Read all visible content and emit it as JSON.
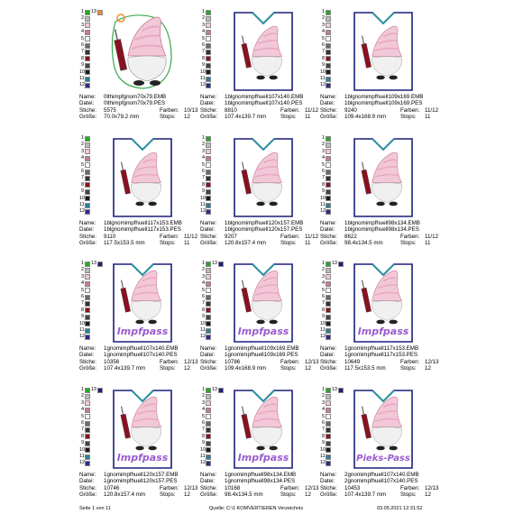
{
  "labels": {
    "name": "Name:",
    "file": "Datei:",
    "stitches": "Stiche:",
    "colors": "Farben:",
    "size": "Größe:",
    "stops": "Stops:"
  },
  "swatch_colors": [
    "#22aa22",
    "#bbbbbb",
    "#f2c8d8",
    "#c77b92",
    "#ffffff",
    "#6a6a6a",
    "#333333",
    "#8a1020",
    "#444444",
    "#1a1a1a",
    "#2a7f9a",
    "#2b2b8a",
    "#1b1f7a"
  ],
  "cells": [
    {
      "name": "0lthimpfgnom70x79.EMB",
      "file": "0lthimpfgnom70x79.PES",
      "stitches": "5575",
      "colors": "10/13",
      "size": "70.0x79.2 mm",
      "stops": "12",
      "swatch_numbers": [
        "1",
        "2",
        "3",
        "4",
        "5",
        "6",
        "7",
        "8",
        "9",
        "10",
        "11",
        "12",
        "13"
      ]
    },
    {
      "name": "1blgnomimpfhuell107x140.EMB",
      "file": "1blgnomimpfhuell107x140.PES",
      "stitches": "8810",
      "colors": "11/12",
      "size": "107.4x139.7 mm",
      "stops": "11",
      "swatch_numbers": [
        "1",
        "2",
        "3",
        "4",
        "5",
        "6",
        "7",
        "8",
        "9",
        "10",
        "11",
        "12"
      ]
    },
    {
      "name": "1blgnomimpfhuell109x169.EMB",
      "file": "1blgnomimpfhuell109x169.PES",
      "stitches": "9240",
      "colors": "11/12",
      "size": "109.4x168.9 mm",
      "stops": "11",
      "swatch_numbers": [
        "1",
        "2",
        "3",
        "4",
        "5",
        "6",
        "7",
        "8",
        "9",
        "10",
        "11",
        "12"
      ]
    },
    {
      "name": "1blgnomimpfhuell117x153.EMB",
      "file": "1blgnomimpfhuell117x153.PES",
      "stitches": "9110",
      "colors": "11/12",
      "size": "117.5x153.5 mm",
      "stops": "11",
      "swatch_numbers": [
        "1",
        "2",
        "3",
        "4",
        "5",
        "6",
        "7",
        "8",
        "9",
        "10",
        "11",
        "12"
      ]
    },
    {
      "name": "1blgnomimpfhuell120x157.EMB",
      "file": "1blgnomimpfhuell120x157.PES",
      "stitches": "9207",
      "colors": "11/12",
      "size": "120.8x157.4 mm",
      "stops": "11",
      "swatch_numbers": [
        "1",
        "2",
        "3",
        "4",
        "5",
        "6",
        "7",
        "8",
        "9",
        "10",
        "11",
        "12"
      ]
    },
    {
      "name": "1blgnomimpfhuell98x134.EMB",
      "file": "1blgnomimpfhuell98x134.PES",
      "stitches": "8622",
      "colors": "11/12",
      "size": "98.4x134.5 mm",
      "stops": "11",
      "swatch_numbers": [
        "1",
        "2",
        "3",
        "4",
        "5",
        "6",
        "7",
        "8",
        "9",
        "10",
        "11",
        "12"
      ]
    },
    {
      "name": "1gnomimpfhuell107x140.EMB",
      "file": "1gnomimpfhuell107x140.PES",
      "stitches": "10356",
      "colors": "12/13",
      "size": "107.4x139.7 mm",
      "stops": "12",
      "badge": "Impfpass",
      "swatch_numbers": [
        "1",
        "2",
        "3",
        "4",
        "5",
        "6",
        "7",
        "8",
        "9",
        "10",
        "11",
        "12",
        "13"
      ]
    },
    {
      "name": "1gnomimpfhuell109x169.EMB",
      "file": "1gnomimpfhuell109x169.PES",
      "stitches": "10786",
      "colors": "12/13",
      "size": "109.4x168.9 mm",
      "stops": "12",
      "badge": "Impfpass",
      "swatch_numbers": [
        "1",
        "2",
        "3",
        "4",
        "5",
        "6",
        "7",
        "8",
        "9",
        "10",
        "11",
        "12",
        "13"
      ]
    },
    {
      "name": "1gnomimpfhuell117x153.EMB",
      "file": "1gnomimpfhuell117x153.PES",
      "stitches": "10649",
      "colors": "12/13",
      "size": "117.5x153.5 mm",
      "stops": "12",
      "badge": "Impfpass",
      "swatch_numbers": [
        "1",
        "2",
        "3",
        "4",
        "5",
        "6",
        "7",
        "8",
        "9",
        "10",
        "11",
        "12",
        "13"
      ]
    },
    {
      "name": "1gnomimpfhuell120x157.EMB",
      "file": "1gnomimpfhuell120x157.PES",
      "stitches": "10746",
      "colors": "12/13",
      "size": "120.8x157.4 mm",
      "stops": "12",
      "badge": "Impfpass",
      "swatch_numbers": [
        "1",
        "2",
        "3",
        "4",
        "5",
        "6",
        "7",
        "8",
        "9",
        "10",
        "11",
        "12",
        "13"
      ]
    },
    {
      "name": "1gnomimpfhuell98x134.EMB",
      "file": "1gnomimpfhuell98x134.PES",
      "stitches": "10168",
      "colors": "12/13",
      "size": "98.4x134.5 mm",
      "stops": "12",
      "badge": "Impfpass",
      "swatch_numbers": [
        "1",
        "2",
        "3",
        "4",
        "5",
        "6",
        "7",
        "8",
        "9",
        "10",
        "11",
        "12",
        "13"
      ]
    },
    {
      "name": "2gnomimpfhuell107x140.EMB",
      "file": "2gnomimpfhuell107x140.PES",
      "stitches": "10453",
      "colors": "12/13",
      "size": "107.4x139.7 mm",
      "stops": "12",
      "badge": "Pieks-Pass",
      "swatch_numbers": [
        "1",
        "2",
        "3",
        "4",
        "5",
        "6",
        "7",
        "8",
        "9",
        "10",
        "11",
        "12",
        "13"
      ]
    }
  ],
  "footer": {
    "page": "Seite 1 von 11",
    "source": "Quelle: C:\\1 KOMVERTIEREN Verzeichnis",
    "date": "03.05.2021 12:31:52"
  }
}
